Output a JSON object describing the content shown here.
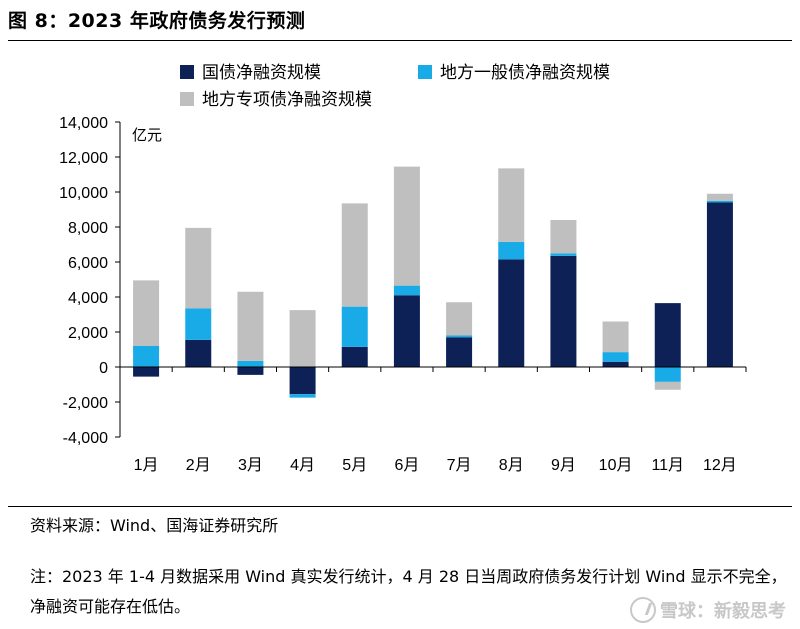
{
  "header": {
    "title": "图 8：2023 年政府债务发行预测"
  },
  "chart_data": {
    "type": "bar",
    "stacked": true,
    "categories": [
      "1月",
      "2月",
      "3月",
      "4月",
      "5月",
      "6月",
      "7月",
      "8月",
      "9月",
      "10月",
      "11月",
      "12月"
    ],
    "series": [
      {
        "name": "国债净融资规模",
        "color": "#0d2157",
        "values": [
          -550,
          1550,
          -450,
          -1550,
          1150,
          4100,
          1700,
          6150,
          6350,
          300,
          3650,
          9400
        ]
      },
      {
        "name": "地方一般债净融资规模",
        "color": "#19abe8",
        "values": [
          1200,
          1800,
          350,
          -200,
          2300,
          550,
          100,
          1000,
          150,
          550,
          -850,
          100
        ]
      },
      {
        "name": "地方专项债净融资规模",
        "color": "#bfbfbf",
        "values": [
          3750,
          4600,
          3950,
          3250,
          5900,
          6800,
          1900,
          4200,
          1900,
          1750,
          -450,
          400
        ]
      }
    ],
    "ylim": [
      -4000,
      14000
    ],
    "yticks": [
      -4000,
      -2000,
      0,
      2000,
      4000,
      6000,
      8000,
      10000,
      12000,
      14000
    ],
    "ytick_labels": [
      "-4,000",
      "-2,000",
      "0",
      "2,000",
      "4,000",
      "6,000",
      "8,000",
      "10,000",
      "12,000",
      "14,000"
    ],
    "unit_label": "亿元",
    "legend": "top"
  },
  "footer": {
    "source": "资料来源：Wind、国海证券研究所",
    "note": "注：2023 年 1-4 月数据采用 Wind 真实发行统计，4 月 28 日当周政府债务发行计划 Wind 显示不完全，净融资可能存在低估。"
  },
  "watermark": {
    "text": "雪球：新毅思考"
  }
}
